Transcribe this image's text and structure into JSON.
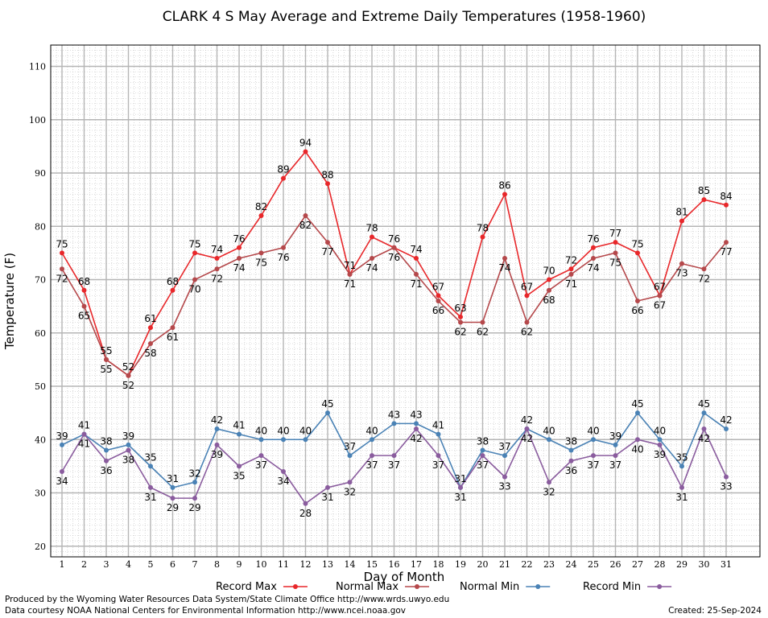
{
  "chart_data": {
    "type": "line",
    "title": "CLARK 4 S May Average and Extreme Daily Temperatures (1958-1960)",
    "xlabel": "Day of Month",
    "ylabel": "Temperature (F)",
    "ylim": [
      18,
      114
    ],
    "y_ticks": [
      20,
      30,
      40,
      50,
      60,
      70,
      80,
      90,
      100,
      110
    ],
    "x": [
      1,
      2,
      3,
      4,
      5,
      6,
      7,
      8,
      9,
      10,
      11,
      12,
      13,
      14,
      15,
      16,
      17,
      18,
      19,
      20,
      21,
      22,
      23,
      24,
      25,
      26,
      27,
      28,
      29,
      30,
      31
    ],
    "x_tick_labels": [
      "1",
      "2",
      "3",
      "4",
      "5",
      "6",
      "7",
      "8",
      "9",
      "10",
      "11",
      "12",
      "13",
      "14",
      "15",
      "16",
      "17",
      "18",
      "19",
      "20",
      "21",
      "22",
      "23",
      "24",
      "25",
      "26",
      "27",
      "28",
      "29",
      "30",
      "31"
    ],
    "grid": true,
    "legend_position": "bottom",
    "series": [
      {
        "name": "Record Max",
        "color": "#e8272a",
        "values": [
          75,
          68,
          55,
          52,
          61,
          68,
          75,
          74,
          76,
          82,
          89,
          94,
          88,
          71,
          78,
          76,
          74,
          67,
          63,
          78,
          86,
          67,
          70,
          72,
          76,
          77,
          75,
          67,
          81,
          85,
          84
        ]
      },
      {
        "name": "Normal Max",
        "color": "#b5484b",
        "values": [
          72,
          65,
          55,
          52,
          58,
          61,
          70,
          72,
          74,
          75,
          76,
          82,
          77,
          71,
          74,
          76,
          71,
          66,
          62,
          62,
          74,
          62,
          68,
          71,
          74,
          75,
          66,
          67,
          73,
          72,
          77
        ]
      },
      {
        "name": "Normal Min",
        "color": "#4a82b5",
        "values": [
          39,
          41,
          38,
          39,
          35,
          31,
          32,
          42,
          41,
          40,
          40,
          40,
          45,
          37,
          40,
          43,
          43,
          41,
          31,
          38,
          37,
          42,
          40,
          38,
          40,
          39,
          45,
          40,
          35,
          45,
          42
        ]
      },
      {
        "name": "Record Min",
        "color": "#8a5c9e",
        "values": [
          34,
          41,
          36,
          38,
          31,
          29,
          29,
          39,
          35,
          37,
          34,
          28,
          31,
          32,
          37,
          37,
          42,
          37,
          31,
          37,
          33,
          42,
          32,
          36,
          37,
          37,
          40,
          39,
          31,
          42,
          33
        ]
      }
    ]
  },
  "footer": {
    "line1": "Produced by the Wyoming Water Resources Data System/State Climate Office http://www.wrds.uwyo.edu",
    "line2": "Data courtesy NOAA National Centers for Environmental Information http://www.ncei.noaa.gov",
    "created": "Created:  25-Sep-2024"
  }
}
